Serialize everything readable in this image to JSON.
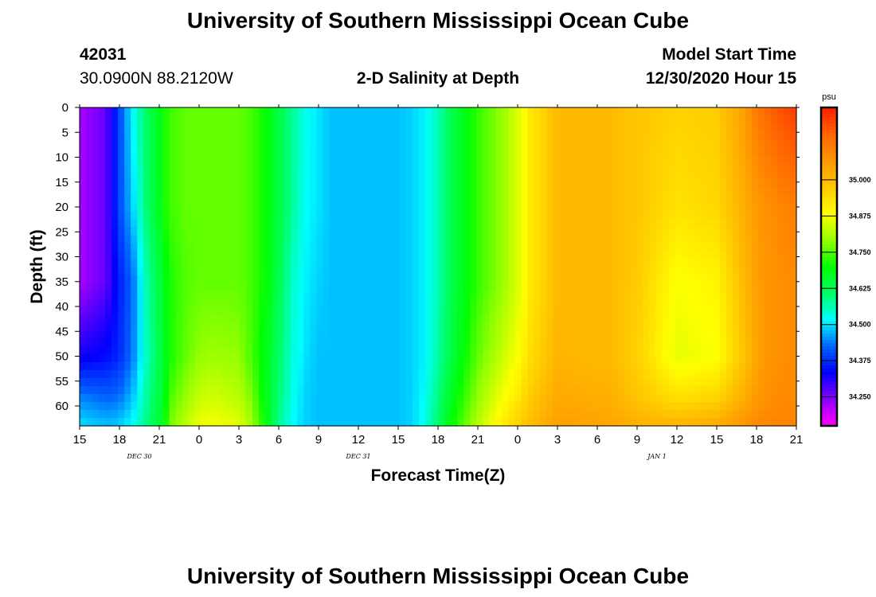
{
  "header": {
    "title": "University of Southern Mississippi Ocean Cube",
    "station_id": "42031",
    "station_coords": "30.0900N 88.2120W",
    "plot_title": "2-D Salinity at Depth",
    "model_start_label": "Model Start Time",
    "model_start_value": "12/30/2020 Hour 15"
  },
  "footer": {
    "title": "University of Southern Mississippi Ocean Cube"
  },
  "colors": {
    "ramp": [
      "#ff00ff",
      "#8c00ff",
      "#0000ff",
      "#0064ff",
      "#00ffff",
      "#00ff64",
      "#00ff00",
      "#96ff00",
      "#ffff00",
      "#ffc800",
      "#ff9600",
      "#ff6400",
      "#ff1e00"
    ]
  },
  "chart_data": {
    "type": "heatmap",
    "title": "2-D Salinity at Depth",
    "xlabel": "Forecast Time(Z)",
    "ylabel": "Depth (ft)",
    "x_tick_labels": [
      "15",
      "18",
      "21",
      "0",
      "3",
      "6",
      "9",
      "12",
      "15",
      "18",
      "21",
      "0",
      "3",
      "6",
      "9",
      "12",
      "15",
      "18",
      "21"
    ],
    "x_date_labels": [
      {
        "label": "DEC 30",
        "at_tick": 1.5
      },
      {
        "label": "DEC 31",
        "at_tick": 7
      },
      {
        "label": "JAN 1",
        "at_tick": 14.5
      }
    ],
    "y_tick_labels": [
      "0",
      "5",
      "10",
      "15",
      "20",
      "25",
      "30",
      "35",
      "40",
      "45",
      "50",
      "55",
      "60"
    ],
    "xlim_hours": [
      0,
      54
    ],
    "ylim_ft": [
      0,
      64
    ],
    "unit": "psu",
    "colorbar_ticks": [
      "34.250",
      "34.375",
      "34.500",
      "34.625",
      "34.750",
      "34.875",
      "35.000"
    ],
    "color_range": [
      34.15,
      35.25
    ],
    "profiles": {
      "hours": [
        0,
        2,
        3,
        4,
        5,
        6,
        6.5,
        7,
        8,
        9,
        10,
        12,
        13,
        14,
        15,
        16,
        17,
        18,
        19,
        20,
        21,
        22,
        23,
        24,
        25,
        26,
        27,
        28,
        30,
        32,
        33,
        34,
        36,
        40,
        42,
        45,
        48,
        50,
        51,
        52,
        53,
        54
      ],
      "depths_ft": [
        0,
        20,
        35,
        50,
        58,
        64
      ],
      "salinity_psu": [
        [
          34.22,
          34.22,
          34.22,
          34.32,
          34.44,
          34.5
        ],
        [
          34.27,
          34.27,
          34.27,
          34.34,
          34.42,
          34.48
        ],
        [
          34.4,
          34.4,
          34.36,
          34.37,
          34.43,
          34.49
        ],
        [
          34.52,
          34.49,
          34.43,
          34.44,
          34.48,
          34.52
        ],
        [
          34.61,
          34.6,
          34.56,
          34.55,
          34.57,
          34.59
        ],
        [
          34.68,
          34.67,
          34.64,
          34.63,
          34.64,
          34.65
        ],
        [
          34.72,
          34.72,
          34.69,
          34.68,
          34.7,
          34.72
        ],
        [
          34.74,
          34.74,
          34.72,
          34.72,
          34.75,
          34.78
        ],
        [
          34.76,
          34.76,
          34.75,
          34.76,
          34.79,
          34.83
        ],
        [
          34.76,
          34.76,
          34.76,
          34.79,
          34.83,
          34.87
        ],
        [
          34.76,
          34.76,
          34.76,
          34.8,
          34.84,
          34.88
        ],
        [
          34.76,
          34.76,
          34.76,
          34.79,
          34.82,
          34.86
        ],
        [
          34.74,
          34.74,
          34.74,
          34.74,
          34.77,
          34.8
        ],
        [
          34.7,
          34.7,
          34.7,
          34.68,
          34.68,
          34.7
        ],
        [
          34.64,
          34.64,
          34.63,
          34.61,
          34.6,
          34.58
        ],
        [
          34.58,
          34.58,
          34.55,
          34.54,
          34.53,
          34.52
        ],
        [
          34.53,
          34.52,
          34.51,
          34.5,
          34.49,
          34.49
        ],
        [
          34.5,
          34.5,
          34.49,
          34.48,
          34.48,
          34.48
        ],
        [
          34.48,
          34.48,
          34.48,
          34.48,
          34.48,
          34.48
        ],
        [
          34.48,
          34.48,
          34.48,
          34.48,
          34.48,
          34.48
        ],
        [
          34.48,
          34.48,
          34.48,
          34.48,
          34.48,
          34.48
        ],
        [
          34.48,
          34.48,
          34.48,
          34.48,
          34.48,
          34.48
        ],
        [
          34.48,
          34.48,
          34.48,
          34.48,
          34.48,
          34.48
        ],
        [
          34.48,
          34.48,
          34.48,
          34.48,
          34.48,
          34.48
        ],
        [
          34.49,
          34.49,
          34.49,
          34.49,
          34.49,
          34.49
        ],
        [
          34.51,
          34.51,
          34.51,
          34.51,
          34.52,
          34.53
        ],
        [
          34.56,
          34.56,
          34.56,
          34.57,
          34.59,
          34.61
        ],
        [
          34.63,
          34.63,
          34.63,
          34.64,
          34.67,
          34.7
        ],
        [
          34.73,
          34.73,
          34.73,
          34.76,
          34.79,
          34.82
        ],
        [
          34.8,
          34.8,
          34.8,
          34.84,
          34.88,
          34.92
        ],
        [
          34.85,
          34.85,
          34.85,
          34.88,
          34.92,
          34.96
        ],
        [
          34.92,
          34.92,
          34.92,
          34.94,
          34.97,
          35.0
        ],
        [
          35.0,
          35.0,
          35.0,
          35.01,
          35.03,
          35.05
        ],
        [
          35.0,
          35.0,
          35.0,
          35.0,
          35.02,
          35.04
        ],
        [
          34.98,
          34.98,
          34.97,
          34.96,
          34.98,
          35.02
        ],
        [
          34.96,
          34.93,
          34.88,
          34.86,
          34.93,
          35.01
        ],
        [
          34.97,
          34.95,
          34.9,
          34.88,
          34.95,
          35.03
        ],
        [
          35.05,
          35.02,
          35.0,
          34.98,
          35.02,
          35.07
        ],
        [
          35.12,
          35.06,
          35.05,
          35.04,
          35.06,
          35.09
        ],
        [
          35.16,
          35.08,
          35.07,
          35.07,
          35.08,
          35.1
        ],
        [
          35.19,
          35.1,
          35.08,
          35.08,
          35.09,
          35.1
        ],
        [
          35.21,
          35.11,
          35.09,
          35.09,
          35.09,
          35.1
        ]
      ]
    }
  }
}
